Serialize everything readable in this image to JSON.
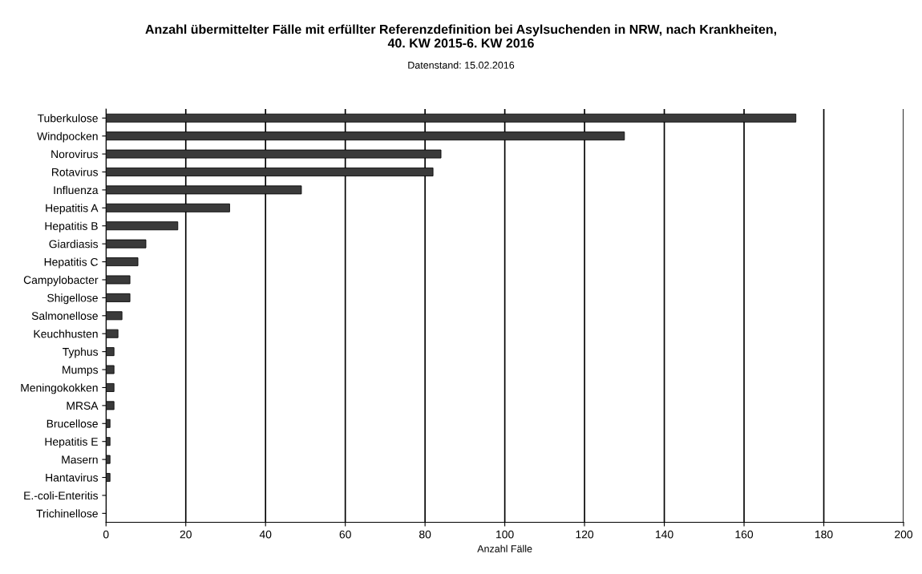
{
  "chart_data": {
    "type": "bar",
    "orientation": "horizontal",
    "title": "Anzahl übermittelter Fälle mit erfüllter Referenzdefinition bei Asylsuchenden in NRW, nach Krankheiten,\n40. KW 2015-6. KW 2016",
    "subtitle": "Datenstand: 15.02.2016",
    "xlabel": "Anzahl Fälle",
    "categories": [
      "Tuberkulose",
      "Windpocken",
      "Norovirus",
      "Rotavirus",
      "Influenza",
      "Hepatitis A",
      "Hepatitis B",
      "Giardiasis",
      "Hepatitis C",
      "Campylobacter",
      "Shigellose",
      "Salmonellose",
      "Keuchhusten",
      "Typhus",
      "Mumps",
      "Meningokokken",
      "MRSA",
      "Brucellose",
      "Hepatitis E",
      "Masern",
      "Hantavirus",
      "E.-coli-Enteritis",
      "Trichinellose"
    ],
    "values": [
      173,
      130,
      84,
      82,
      49,
      31,
      18,
      10,
      8,
      6,
      6,
      4,
      3,
      2,
      2,
      2,
      2,
      1,
      1,
      1,
      1,
      0,
      0
    ],
    "color": "#3a3a3a",
    "xlim": [
      0,
      200
    ],
    "xticks": [
      0,
      20,
      40,
      60,
      80,
      100,
      120,
      140,
      160,
      180,
      200
    ],
    "grid": "x"
  }
}
